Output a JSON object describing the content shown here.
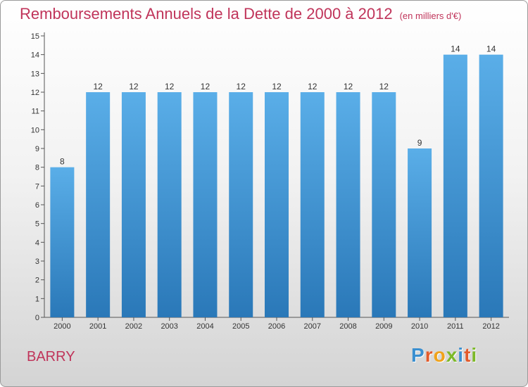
{
  "header": {
    "title": "Remboursements Annuels de la Dette de 2000 à 2012",
    "unit": "(en milliers d'€)"
  },
  "footer": {
    "commune": "BARRY"
  },
  "logo": {
    "text": "Proxiti",
    "letters": [
      {
        "ch": "P",
        "color": "#3a8fd0"
      },
      {
        "ch": "r",
        "color": "#e35a2a"
      },
      {
        "ch": "o",
        "color": "#f0a21a"
      },
      {
        "ch": "x",
        "color": "#7db929"
      },
      {
        "ch": "i",
        "color": "#3a8fd0"
      },
      {
        "ch": "t",
        "color": "#e35a2a"
      },
      {
        "ch": "i",
        "color": "#7db929"
      }
    ]
  },
  "chart_data": {
    "type": "bar",
    "categories": [
      "2000",
      "2001",
      "2002",
      "2003",
      "2004",
      "2005",
      "2006",
      "2007",
      "2008",
      "2009",
      "2010",
      "2011",
      "2012"
    ],
    "values": [
      8,
      12,
      12,
      12,
      12,
      12,
      12,
      12,
      12,
      12,
      9,
      14,
      14
    ],
    "ylim": [
      0,
      15
    ],
    "yticks": [
      0,
      1,
      2,
      3,
      4,
      5,
      6,
      7,
      8,
      9,
      10,
      11,
      12,
      13,
      14,
      15
    ],
    "grid": false,
    "bar_color_top": "#5aaee8",
    "bar_color_bottom": "#2a78b8"
  }
}
